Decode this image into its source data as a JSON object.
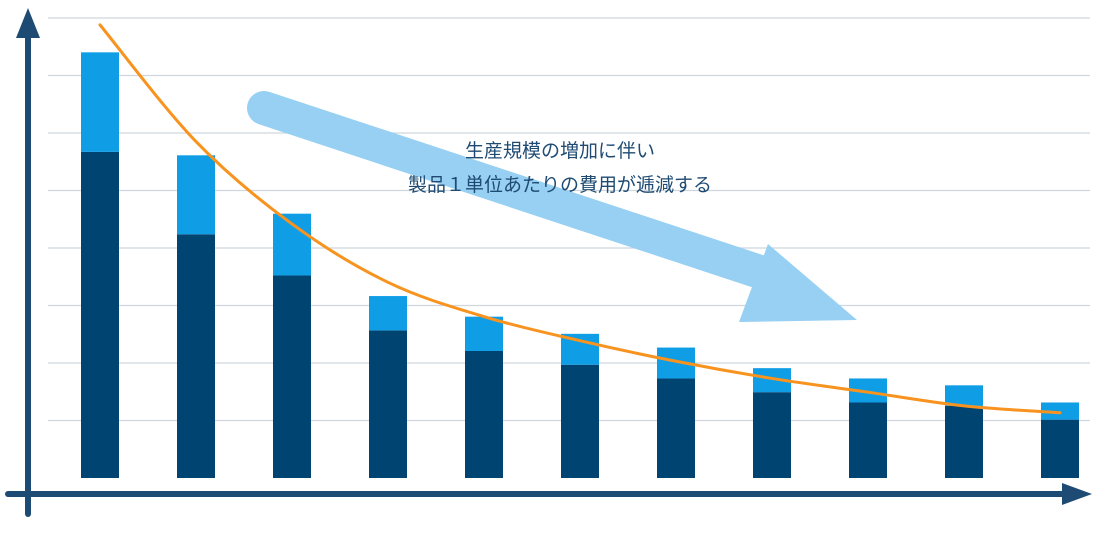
{
  "chart_data": {
    "type": "bar",
    "stacked": true,
    "grid": true,
    "categories": [
      "",
      "",
      "",
      "",
      "",
      "",
      "",
      "",
      "",
      "",
      ""
    ],
    "ylim": [
      0,
      13.4
    ],
    "series": [
      {
        "values": [
          9.5,
          7.1,
          5.9,
          4.3,
          3.7,
          3.3,
          2.9,
          2.5,
          2.2,
          2.1,
          1.7
        ]
      },
      {
        "values": [
          2.9,
          2.3,
          1.8,
          1.0,
          1.0,
          0.9,
          0.9,
          0.7,
          0.7,
          0.6,
          0.5
        ]
      }
    ],
    "trend_line": {
      "type": "line",
      "shape": "decreasing curve",
      "values": [
        13.2,
        9.8,
        7.4,
        5.7,
        4.7,
        4.0,
        3.4,
        2.9,
        2.5,
        2.1,
        1.9
      ]
    },
    "annotation": {
      "lines": [
        "生産規模の増加に伴い",
        "製品１単位あたりの費用が逓減する"
      ]
    },
    "colors": {
      "axis": "#1e4b73",
      "grid": "#cfd6dd",
      "series": [
        "#004471",
        "#0f9ee6"
      ],
      "trend_line": "#f7931e",
      "arrow": "#97d0f2"
    }
  }
}
